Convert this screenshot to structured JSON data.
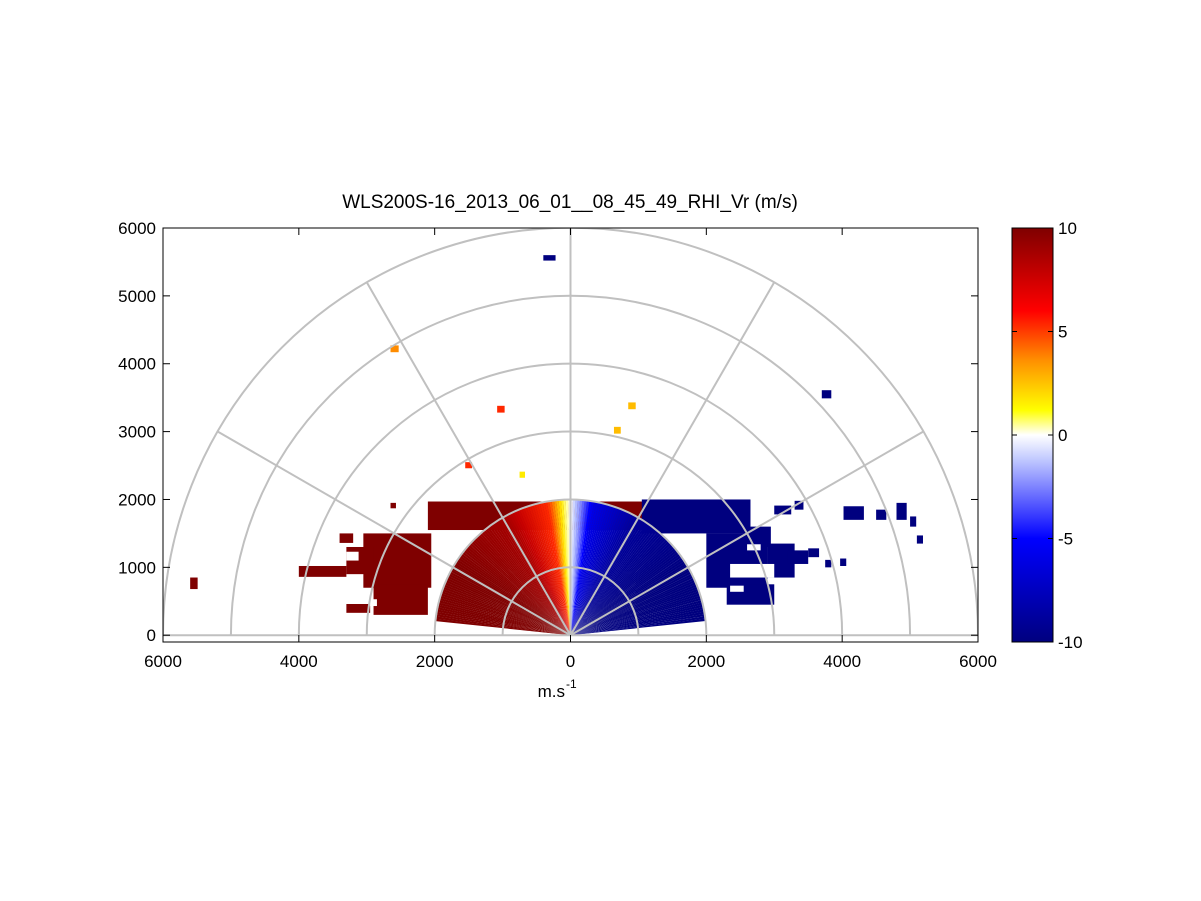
{
  "chart_data": {
    "type": "heatmap",
    "subtype": "polar RHI scan (range-height), half-disk",
    "title": "WLS200S-16_2013_06_01__08_45_49_RHI_Vr (m/s)",
    "xlabel": "m.s",
    "xlabel_superscript": "-1",
    "ylabel": "",
    "xlim": [
      -6000,
      6000
    ],
    "ylim": [
      -100,
      6000
    ],
    "x_tick_values": [
      -6000,
      -4000,
      -2000,
      0,
      2000,
      4000,
      6000
    ],
    "x_tick_labels": [
      "6000",
      "4000",
      "2000",
      "0",
      "2000",
      "4000",
      "6000"
    ],
    "y_tick_values": [
      0,
      1000,
      2000,
      3000,
      4000,
      5000,
      6000
    ],
    "y_tick_labels": [
      "0",
      "1000",
      "2000",
      "3000",
      "4000",
      "5000",
      "6000"
    ],
    "polar_grid": {
      "range_rings": [
        1000,
        2000,
        3000,
        4000,
        5000,
        6000
      ],
      "spokes_deg": [
        0,
        30,
        60,
        90,
        120,
        150,
        180
      ],
      "color": "#c0c0c0"
    },
    "colorbar": {
      "clim": [
        -10,
        10
      ],
      "tick_values": [
        10,
        5,
        0,
        -5,
        -10
      ],
      "tick_labels": [
        "10",
        "5",
        "0",
        "-5",
        "-10"
      ],
      "colors": [
        "#00007f",
        "#0000ff",
        "#ffffff",
        "#ffff00",
        "#ff0000",
        "#7f0000"
      ]
    },
    "main_field": {
      "description": "Doppler radial velocity vs range and elevation; positive (red) on left side, negative (blue) on right side",
      "range_max": 2000,
      "elevation_min_deg": 6,
      "value_elevation_deg": [
        6,
        30,
        60,
        80,
        86,
        90,
        94,
        100,
        120,
        150,
        174
      ],
      "value_vr": [
        10,
        10,
        9,
        6,
        2,
        0,
        -2,
        -6,
        -9,
        -10,
        -10
      ]
    },
    "patches": [
      {
        "x": -2100,
        "y": 1550,
        "w": 4400,
        "h": 420,
        "vr": 10
      },
      {
        "x": -3050,
        "y": 700,
        "w": 1000,
        "h": 800,
        "vr": 10
      },
      {
        "x": -2900,
        "y": 300,
        "w": 800,
        "h": 450,
        "vr": 10
      },
      {
        "x": -3300,
        "y": 900,
        "w": 400,
        "h": 400,
        "vr": 10
      },
      {
        "x": -4000,
        "y": 860,
        "w": 700,
        "h": 160,
        "vr": 10
      },
      {
        "x": -3300,
        "y": 330,
        "w": 350,
        "h": 130,
        "vr": 10
      },
      {
        "x": -5600,
        "y": 680,
        "w": 110,
        "h": 170,
        "vr": 10
      },
      {
        "x": -3400,
        "y": 1360,
        "w": 200,
        "h": 140,
        "vr": 10
      },
      {
        "x": -2650,
        "y": 1870,
        "w": 80,
        "h": 80,
        "vr": 10
      },
      {
        "x": 1050,
        "y": 1500,
        "w": 1600,
        "h": 500,
        "vr": -10
      },
      {
        "x": 2000,
        "y": 700,
        "w": 900,
        "h": 800,
        "vr": -10
      },
      {
        "x": 2300,
        "y": 450,
        "w": 700,
        "h": 300,
        "vr": -10
      },
      {
        "x": 2600,
        "y": 1300,
        "w": 350,
        "h": 300,
        "vr": -10
      },
      {
        "x": 2900,
        "y": 850,
        "w": 400,
        "h": 500,
        "vr": -10
      },
      {
        "x": 3200,
        "y": 1050,
        "w": 300,
        "h": 200,
        "vr": -10
      },
      {
        "x": 3500,
        "y": 1150,
        "w": 160,
        "h": 130,
        "vr": -10
      },
      {
        "x": 3750,
        "y": 1000,
        "w": 90,
        "h": 110,
        "vr": -10
      },
      {
        "x": 3970,
        "y": 1020,
        "w": 90,
        "h": 110,
        "vr": -10
      },
      {
        "x": 4020,
        "y": 1700,
        "w": 300,
        "h": 200,
        "vr": -10
      },
      {
        "x": 4500,
        "y": 1700,
        "w": 150,
        "h": 150,
        "vr": -10
      },
      {
        "x": 4800,
        "y": 1700,
        "w": 150,
        "h": 250,
        "vr": -10
      },
      {
        "x": 5000,
        "y": 1600,
        "w": 90,
        "h": 150,
        "vr": -10
      },
      {
        "x": 5100,
        "y": 1350,
        "w": 90,
        "h": 120,
        "vr": -10
      },
      {
        "x": 3000,
        "y": 1780,
        "w": 250,
        "h": 130,
        "vr": -10
      },
      {
        "x": 3300,
        "y": 1850,
        "w": 130,
        "h": 130,
        "vr": -10
      }
    ],
    "holes": [
      {
        "x": -3300,
        "y": 1100,
        "w": 180,
        "h": 130
      },
      {
        "x": -2950,
        "y": 430,
        "w": 100,
        "h": 100
      },
      {
        "x": 2350,
        "y": 850,
        "w": 650,
        "h": 200
      },
      {
        "x": 2600,
        "y": 1250,
        "w": 200,
        "h": 90
      },
      {
        "x": 2350,
        "y": 640,
        "w": 200,
        "h": 90
      }
    ],
    "scatter_points": [
      {
        "x": -400,
        "y": 5520,
        "w": 180,
        "h": 80,
        "vr": -10
      },
      {
        "x": -2650,
        "y": 4170,
        "w": 120,
        "h": 100,
        "vr": 4
      },
      {
        "x": -1080,
        "y": 3280,
        "w": 110,
        "h": 100,
        "vr": 6
      },
      {
        "x": 850,
        "y": 3330,
        "w": 110,
        "h": 100,
        "vr": 3
      },
      {
        "x": 640,
        "y": 2970,
        "w": 100,
        "h": 100,
        "vr": 3
      },
      {
        "x": -1550,
        "y": 2460,
        "w": 100,
        "h": 90,
        "vr": 6
      },
      {
        "x": -750,
        "y": 2320,
        "w": 80,
        "h": 90,
        "vr": 2
      },
      {
        "x": 3700,
        "y": 3490,
        "w": 140,
        "h": 120,
        "vr": -10
      }
    ]
  }
}
